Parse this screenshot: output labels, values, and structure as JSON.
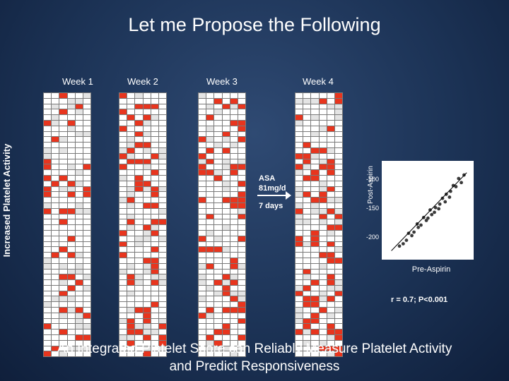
{
  "slide": {
    "title": "Let me Propose the Following",
    "y_label": "Increased Platelet Activity",
    "caption_line1": "An Integrated Platelet Score can Reliably Measure Platelet Activity",
    "caption_line2": "and Predict Responsiveness",
    "asa_line1": "ASA",
    "asa_line2": "81mg/d",
    "days_label": "7 days",
    "stat": "r = 0.7; P<0.001",
    "weeks": [
      {
        "label": "Week 1",
        "label_x": 88,
        "grid_x": 61
      },
      {
        "label": "Week 2",
        "label_x": 180,
        "grid_x": 168
      },
      {
        "label": "Week 3",
        "label_x": 292,
        "grid_x": 280
      },
      {
        "label": "Week 4",
        "label_x": 428,
        "grid_x": 417
      }
    ]
  },
  "colors": {
    "red": "#e8351e",
    "grey": "#e4e4e4",
    "white": "#ffffff"
  },
  "chart_data": {
    "type": "scatter",
    "title": "",
    "xlabel": "Pre-Aspirin",
    "ylabel": "Post-Aspirin",
    "yticks": [
      "-100",
      "-150",
      "-200"
    ],
    "ylim": [
      -230,
      -75
    ],
    "xlim": [
      -230,
      -75
    ],
    "grid": false,
    "points": [
      [
        -85,
        -92
      ],
      [
        -90,
        -105
      ],
      [
        -95,
        -98
      ],
      [
        -100,
        -112
      ],
      [
        -105,
        -110
      ],
      [
        -110,
        -120
      ],
      [
        -112,
        -130
      ],
      [
        -118,
        -125
      ],
      [
        -120,
        -138
      ],
      [
        -125,
        -132
      ],
      [
        -130,
        -142
      ],
      [
        -132,
        -150
      ],
      [
        -138,
        -148
      ],
      [
        -140,
        -156
      ],
      [
        -145,
        -160
      ],
      [
        -148,
        -152
      ],
      [
        -152,
        -166
      ],
      [
        -155,
        -170
      ],
      [
        -160,
        -165
      ],
      [
        -165,
        -178
      ],
      [
        -170,
        -182
      ],
      [
        -172,
        -176
      ],
      [
        -178,
        -190
      ],
      [
        -182,
        -196
      ],
      [
        -188,
        -192
      ],
      [
        -192,
        -204
      ],
      [
        -198,
        -210
      ],
      [
        -205,
        -214
      ]
    ]
  }
}
